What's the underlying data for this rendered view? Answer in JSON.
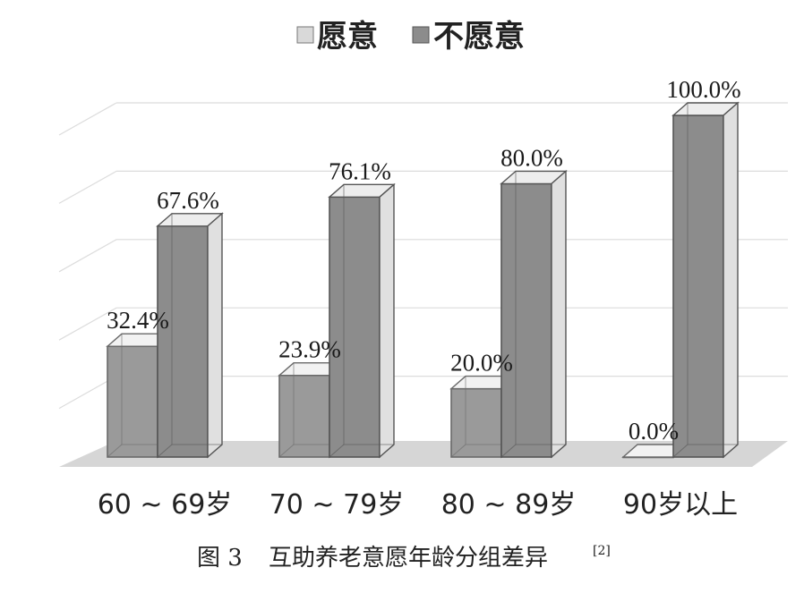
{
  "chart_data": {
    "type": "bar",
    "title": "",
    "categories": [
      "60 ~ 69岁",
      "70 ~ 79岁",
      "80 ~ 89岁",
      "90岁以上"
    ],
    "series": [
      {
        "name": "愿意",
        "values": [
          32.4,
          23.9,
          20.0,
          0.0
        ],
        "labels": [
          "32.4%",
          "23.9%",
          "20.0%",
          "0.0%"
        ],
        "color": "#d9d9d9"
      },
      {
        "name": "不愿意",
        "values": [
          67.6,
          76.1,
          80.0,
          100.0
        ],
        "labels": [
          "67.6%",
          "76.1%",
          "80.0%",
          "100.0%"
        ],
        "color": "#8c8c8c"
      }
    ],
    "ylim": [
      0,
      100
    ],
    "grid": true,
    "legend": "top-center",
    "style": "3d-clustered-column"
  },
  "caption": {
    "figure": "图 3",
    "text": "互助养老意愿年龄分组差异",
    "ref": "[2]"
  }
}
